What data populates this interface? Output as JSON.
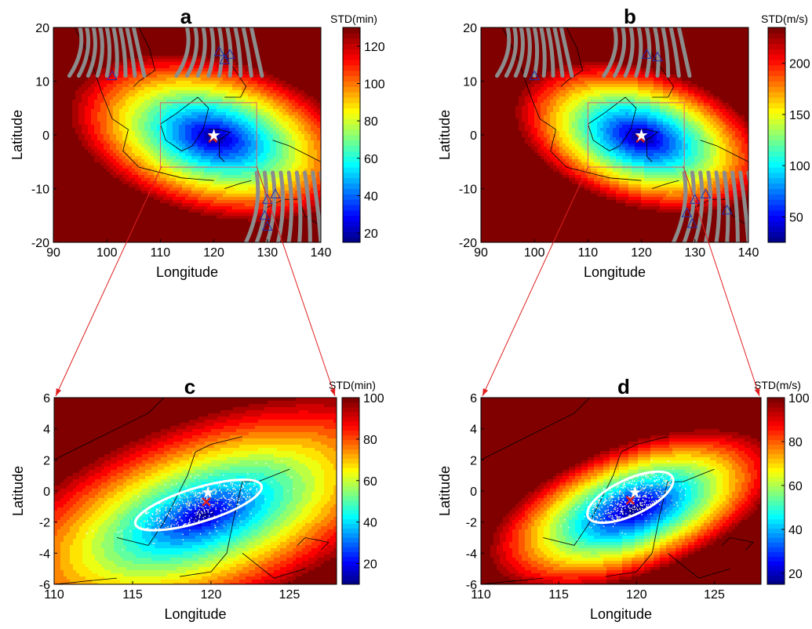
{
  "chart_data": [
    {
      "id": "a",
      "type": "heatmap",
      "panel_label": "a",
      "xlabel": "Longitude",
      "ylabel": "Latitude",
      "xlim": [
        90,
        140
      ],
      "ylim": [
        -20,
        20
      ],
      "xticks": [
        90,
        100,
        110,
        120,
        130,
        140
      ],
      "yticks": [
        -20,
        -10,
        0,
        10,
        20
      ],
      "colorbar": {
        "title": "STD(min)",
        "range": [
          15,
          130
        ],
        "ticks": [
          20,
          40,
          60,
          80,
          100,
          120
        ]
      },
      "field": {
        "center": [
          120,
          -0.5
        ],
        "min": 15,
        "max": 130
      },
      "zoom_box": {
        "lon": [
          110,
          128
        ],
        "lat": [
          -6,
          6
        ]
      },
      "epicenter_star": [
        120,
        -0.1
      ],
      "estimated_location": [
        119.8,
        -0.6
      ],
      "stations": [
        [
          101,
          11
        ],
        [
          121,
          15.5
        ],
        [
          123,
          15
        ],
        [
          122,
          14
        ],
        [
          130,
          -12
        ],
        [
          131.5,
          -11
        ],
        [
          129.5,
          -15
        ],
        [
          130,
          -17
        ]
      ],
      "grid": false
    },
    {
      "id": "b",
      "type": "heatmap",
      "panel_label": "b",
      "xlabel": "Longitude",
      "ylabel": "Latitude",
      "xlim": [
        90,
        140
      ],
      "ylim": [
        -20,
        20
      ],
      "xticks": [
        90,
        100,
        110,
        120,
        130,
        140
      ],
      "yticks": [
        -20,
        -10,
        0,
        10,
        20
      ],
      "colorbar": {
        "title": "STD(m/s)",
        "range": [
          25,
          235
        ],
        "ticks": [
          50,
          100,
          150,
          200
        ]
      },
      "field": {
        "center": [
          120,
          -0.5
        ],
        "min": 25,
        "max": 235
      },
      "zoom_box": {
        "lon": [
          110,
          128
        ],
        "lat": [
          -6,
          6
        ]
      },
      "epicenter_star": [
        120,
        -0.1
      ],
      "estimated_location": [
        119.8,
        -0.6
      ],
      "stations": [
        [
          100,
          11
        ],
        [
          121,
          15
        ],
        [
          123,
          14.5
        ],
        [
          130,
          -12
        ],
        [
          132,
          -11
        ],
        [
          128.5,
          -14.5
        ],
        [
          129.5,
          -16.5
        ],
        [
          136,
          -14
        ]
      ],
      "grid": false
    },
    {
      "id": "c",
      "type": "heatmap",
      "panel_label": "c",
      "xlabel": "Longitude",
      "ylabel": "Latitude",
      "xlim": [
        110,
        128
      ],
      "ylim": [
        -6,
        6
      ],
      "xticks": [
        110,
        115,
        120,
        125
      ],
      "yticks": [
        -6,
        -4,
        -2,
        0,
        2,
        4,
        6
      ],
      "colorbar": {
        "title": "STD(min)",
        "range": [
          10,
          100
        ],
        "ticks": [
          20,
          40,
          60,
          80,
          100
        ]
      },
      "field": {
        "center": [
          119.5,
          -1.6
        ],
        "min": 10,
        "max": 100
      },
      "ellipse": {
        "center": [
          119.2,
          -0.9
        ],
        "semi_major_deg": 4.2,
        "semi_minor_deg": 1.1,
        "angle_deg": 17
      },
      "epicenter_star": [
        119.8,
        -0.1
      ],
      "estimated_location": [
        119.7,
        -0.7
      ],
      "grid": false
    },
    {
      "id": "d",
      "type": "heatmap",
      "panel_label": "d",
      "xlabel": "Longitude",
      "ylabel": "Latitude",
      "xlim": [
        110,
        128
      ],
      "ylim": [
        -6,
        6
      ],
      "xticks": [
        110,
        115,
        120,
        125
      ],
      "yticks": [
        -6,
        -4,
        -2,
        0,
        2,
        4,
        6
      ],
      "colorbar": {
        "title": "STD(m/s)",
        "range": [
          15,
          100
        ],
        "ticks": [
          20,
          40,
          60,
          80,
          100
        ]
      },
      "field": {
        "center": [
          119.8,
          -1.2
        ],
        "min": 15,
        "max": 100
      },
      "ellipse": {
        "center": [
          119.6,
          -0.4
        ],
        "semi_major_deg": 3.0,
        "semi_minor_deg": 1.15,
        "angle_deg": 25
      },
      "epicenter_star": [
        119.9,
        -0.1
      ],
      "estimated_location": [
        119.6,
        -0.6
      ],
      "grid": false
    }
  ],
  "colors": {
    "zoom_box": "#e06070",
    "zoom_arrow": "#e02020",
    "star": "#ffffff",
    "estimate_cross": "#e02020",
    "ellipse": "#ffffff",
    "station": "#2030b0",
    "orbit_tracks": "#8c8c8c",
    "coastline": "#000000",
    "scatter_points": "#ffffff"
  }
}
